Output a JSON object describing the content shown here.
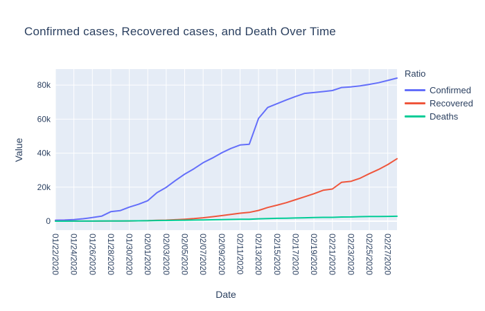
{
  "figure": {
    "title": "Confirmed cases, Recovered cases, and Death Over Time",
    "xlabel": "Date",
    "ylabel": "Value",
    "legend_title": "Ratio"
  },
  "colors": {
    "text": "#2a3f5f",
    "paper_bg": "#ffffff",
    "plot_bg": "#e5ecf6",
    "grid": "#ffffff"
  },
  "chart_data": {
    "type": "line",
    "title": "Confirmed cases, Recovered cases, and Death Over Time",
    "xlabel": "Date",
    "ylabel": "Value",
    "legend_title": "Ratio",
    "legend_position": "right",
    "grid": true,
    "ylim": [
      -5280,
      89400
    ],
    "yticks": {
      "values": [
        0,
        20000,
        40000,
        60000,
        80000
      ],
      "labels": [
        "0",
        "20k",
        "40k",
        "60k",
        "80k"
      ]
    },
    "x": [
      "01/22/2020",
      "01/23/2020",
      "01/24/2020",
      "01/25/2020",
      "01/26/2020",
      "01/27/2020",
      "01/28/2020",
      "01/29/2020",
      "01/30/2020",
      "01/31/2020",
      "02/01/2020",
      "02/02/2020",
      "02/03/2020",
      "02/04/2020",
      "02/05/2020",
      "02/06/2020",
      "02/07/2020",
      "02/08/2020",
      "02/09/2020",
      "02/10/2020",
      "02/11/2020",
      "02/12/2020",
      "02/13/2020",
      "02/14/2020",
      "02/15/2020",
      "02/16/2020",
      "02/17/2020",
      "02/18/2020",
      "02/19/2020",
      "02/20/2020",
      "02/21/2020",
      "02/22/2020",
      "02/23/2020",
      "02/24/2020",
      "02/25/2020",
      "02/26/2020",
      "02/27/2020",
      "02/28/2020"
    ],
    "xticks": [
      "01/22/2020",
      "01/24/2020",
      "01/26/2020",
      "01/28/2020",
      "01/30/2020",
      "02/01/2020",
      "02/03/2020",
      "02/05/2020",
      "02/07/2020",
      "02/09/2020",
      "02/11/2020",
      "02/13/2020",
      "02/15/2020",
      "02/17/2020",
      "02/19/2020",
      "02/21/2020",
      "02/23/2020",
      "02/25/2020",
      "02/27/2020"
    ],
    "xtick_step": 2,
    "series": [
      {
        "name": "Confirmed",
        "color": "#636efa",
        "values": [
          555,
          654,
          941,
          1434,
          2118,
          2927,
          5578,
          6166,
          8234,
          9927,
          12038,
          16787,
          19881,
          23892,
          27635,
          30794,
          34391,
          37120,
          40150,
          42762,
          44802,
          45221,
          60368,
          66885,
          69030,
          71224,
          73258,
          75136,
          75639,
          76197,
          76823,
          78579,
          78965,
          79568,
          80413,
          81395,
          82754,
          84120
        ]
      },
      {
        "name": "Recovered",
        "color": "#ef553b",
        "values": [
          28,
          30,
          36,
          39,
          52,
          61,
          107,
          126,
          143,
          222,
          284,
          472,
          623,
          852,
          1124,
          1487,
          2011,
          2616,
          3244,
          3946,
          4683,
          5150,
          6295,
          8058,
          9395,
          10865,
          12583,
          14352,
          16121,
          18177,
          18890,
          22886,
          23394,
          25227,
          27905,
          30384,
          33277,
          36711
        ]
      },
      {
        "name": "Deaths",
        "color": "#00cc96",
        "values": [
          17,
          18,
          26,
          42,
          56,
          82,
          131,
          133,
          171,
          213,
          259,
          362,
          426,
          492,
          564,
          634,
          719,
          806,
          906,
          1013,
          1113,
          1118,
          1371,
          1523,
          1666,
          1770,
          1868,
          2007,
          2122,
          2247,
          2251,
          2458,
          2469,
          2629,
          2708,
          2770,
          2814,
          2872
        ]
      }
    ]
  }
}
